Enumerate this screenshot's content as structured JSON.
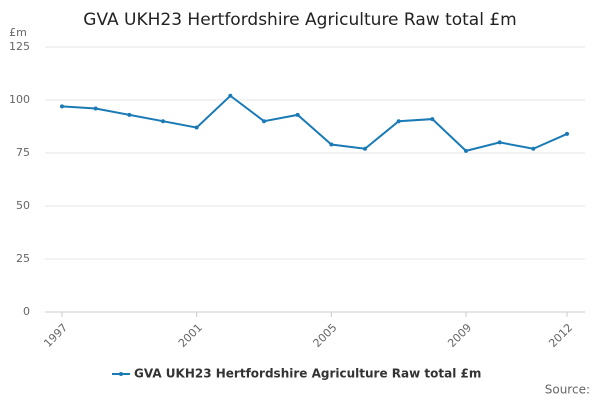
{
  "chart_data": {
    "type": "line",
    "title": "GVA UKH23 Hertfordshire Agriculture Raw total £m",
    "y_unit": "£m",
    "source": "Source:",
    "x": [
      1997,
      1998,
      1999,
      2000,
      2001,
      2002,
      2003,
      2004,
      2005,
      2006,
      2007,
      2008,
      2009,
      2010,
      2011,
      2012
    ],
    "xlim": [
      1997,
      2012
    ],
    "xticks": [
      1997,
      2001,
      2005,
      2009,
      2012
    ],
    "series": [
      {
        "name": "GVA UKH23 Hertfordshire Agriculture Raw total £m",
        "color": "#1a7ab5",
        "values": [
          97,
          96,
          93,
          90,
          87,
          102,
          90,
          93,
          79,
          77,
          90,
          91,
          76,
          80,
          77,
          84
        ]
      }
    ],
    "ylim": [
      0,
      125
    ],
    "yticks": [
      0,
      25,
      50,
      75,
      100,
      125
    ],
    "grid": true
  }
}
